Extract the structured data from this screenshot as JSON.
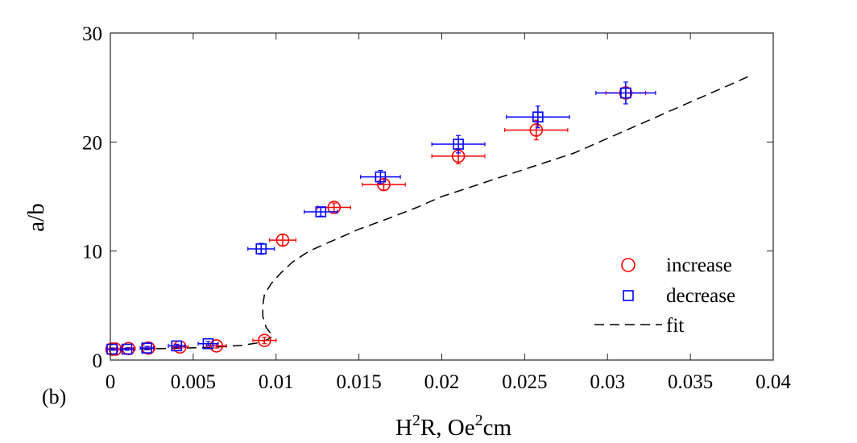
{
  "chart_data": {
    "type": "scatter",
    "panel_label": "(b)",
    "xlabel": {
      "base": "H",
      "sup1": "2",
      "mid": "R, Oe",
      "sup2": "2",
      "tail": "cm"
    },
    "ylabel": "a/b",
    "xlim": [
      0,
      0.04
    ],
    "ylim": [
      0,
      30
    ],
    "x_ticks": [
      0,
      0.005,
      0.01,
      0.015,
      0.02,
      0.025,
      0.03,
      0.035,
      0.04
    ],
    "x_tick_labels": [
      "0",
      "0.005",
      "0.01",
      "0.015",
      "0.02",
      "0.025",
      "0.03",
      "0.035",
      "0.04"
    ],
    "y_ticks": [
      0,
      10,
      20,
      30
    ],
    "y_tick_labels": [
      "0",
      "10",
      "20",
      "30"
    ],
    "legend_position": "bottom-right",
    "colors": {
      "increase": "#ff0000",
      "decrease": "#0000ff",
      "fit": "#000000"
    },
    "series": [
      {
        "name": "increase",
        "marker": "circle",
        "points": [
          {
            "x": 0.0001,
            "y": 1.0,
            "xerr": 0.0003,
            "yerr": 0.1
          },
          {
            "x": 0.0003,
            "y": 1.0,
            "xerr": 0.0003,
            "yerr": 0.1
          },
          {
            "x": 0.0011,
            "y": 1.05,
            "xerr": 0.0004,
            "yerr": 0.1
          },
          {
            "x": 0.0023,
            "y": 1.1,
            "xerr": 0.0004,
            "yerr": 0.15
          },
          {
            "x": 0.0042,
            "y": 1.2,
            "xerr": 0.0005,
            "yerr": 0.15
          },
          {
            "x": 0.0064,
            "y": 1.3,
            "xerr": 0.0006,
            "yerr": 0.2
          },
          {
            "x": 0.0093,
            "y": 1.8,
            "xerr": 0.0007,
            "yerr": 0.3
          },
          {
            "x": 0.0104,
            "y": 11.0,
            "xerr": 0.0008,
            "yerr": 0.5
          },
          {
            "x": 0.0135,
            "y": 14.0,
            "xerr": 0.001,
            "yerr": 0.4
          },
          {
            "x": 0.0165,
            "y": 16.1,
            "xerr": 0.0013,
            "yerr": 0.5
          },
          {
            "x": 0.021,
            "y": 18.7,
            "xerr": 0.0016,
            "yerr": 0.7
          },
          {
            "x": 0.0257,
            "y": 21.1,
            "xerr": 0.0019,
            "yerr": 0.9
          },
          {
            "x": 0.0311,
            "y": 24.5,
            "xerr": 0.0012,
            "yerr": 0.5
          }
        ]
      },
      {
        "name": "decrease",
        "marker": "square",
        "points": [
          {
            "x": 0.0001,
            "y": 1.0,
            "xerr": 0.0003,
            "yerr": 0.1
          },
          {
            "x": 0.001,
            "y": 1.0,
            "xerr": 0.0004,
            "yerr": 0.1
          },
          {
            "x": 0.0022,
            "y": 1.1,
            "xerr": 0.0004,
            "yerr": 0.15
          },
          {
            "x": 0.004,
            "y": 1.3,
            "xerr": 0.0005,
            "yerr": 0.15
          },
          {
            "x": 0.0059,
            "y": 1.5,
            "xerr": 0.0006,
            "yerr": 0.2
          },
          {
            "x": 0.0091,
            "y": 10.2,
            "xerr": 0.0008,
            "yerr": 0.5
          },
          {
            "x": 0.0127,
            "y": 13.6,
            "xerr": 0.001,
            "yerr": 0.4
          },
          {
            "x": 0.0163,
            "y": 16.8,
            "xerr": 0.0012,
            "yerr": 0.6
          },
          {
            "x": 0.021,
            "y": 19.8,
            "xerr": 0.0016,
            "yerr": 0.8
          },
          {
            "x": 0.0258,
            "y": 22.3,
            "xerr": 0.0019,
            "yerr": 1.0
          },
          {
            "x": 0.0311,
            "y": 24.5,
            "xerr": 0.0018,
            "yerr": 1.0
          }
        ]
      },
      {
        "name": "fit",
        "style": "dashed",
        "points": [
          {
            "x": 0.0,
            "y": 1.0
          },
          {
            "x": 0.003,
            "y": 1.05
          },
          {
            "x": 0.006,
            "y": 1.15
          },
          {
            "x": 0.008,
            "y": 1.35
          },
          {
            "x": 0.009,
            "y": 1.6
          },
          {
            "x": 0.0095,
            "y": 1.9
          },
          {
            "x": 0.0098,
            "y": 2.2
          },
          {
            "x": 0.0094,
            "y": 3.0
          },
          {
            "x": 0.0092,
            "y": 4.0
          },
          {
            "x": 0.0092,
            "y": 5.0
          },
          {
            "x": 0.0093,
            "y": 6.0
          },
          {
            "x": 0.0097,
            "y": 7.0
          },
          {
            "x": 0.0103,
            "y": 8.0
          },
          {
            "x": 0.011,
            "y": 9.0
          },
          {
            "x": 0.012,
            "y": 10.0
          },
          {
            "x": 0.0135,
            "y": 11.0
          },
          {
            "x": 0.015,
            "y": 12.0
          },
          {
            "x": 0.0168,
            "y": 13.0
          },
          {
            "x": 0.0185,
            "y": 14.0
          },
          {
            "x": 0.02,
            "y": 15.0
          },
          {
            "x": 0.022,
            "y": 16.0
          },
          {
            "x": 0.024,
            "y": 17.0
          },
          {
            "x": 0.026,
            "y": 18.0
          },
          {
            "x": 0.028,
            "y": 19.0
          },
          {
            "x": 0.0295,
            "y": 20.0
          },
          {
            "x": 0.031,
            "y": 21.0
          },
          {
            "x": 0.0325,
            "y": 22.0
          },
          {
            "x": 0.034,
            "y": 23.0
          },
          {
            "x": 0.0355,
            "y": 24.0
          },
          {
            "x": 0.037,
            "y": 25.0
          },
          {
            "x": 0.0385,
            "y": 26.0
          }
        ]
      }
    ]
  }
}
